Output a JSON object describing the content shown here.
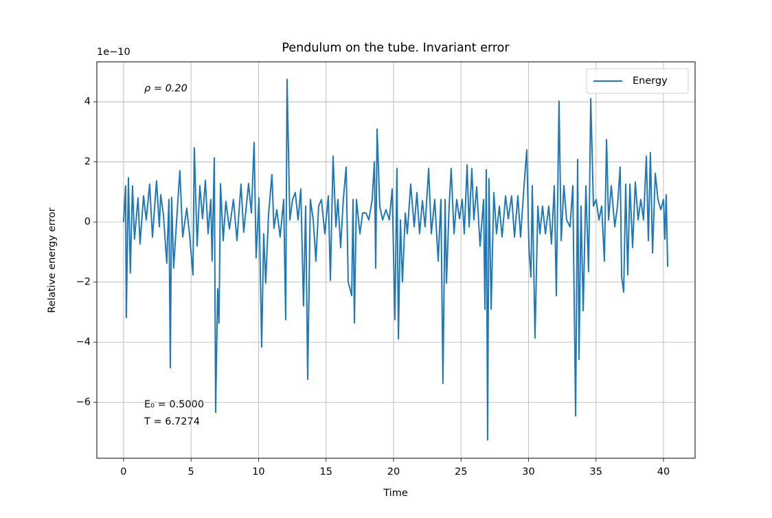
{
  "chart_data": {
    "type": "line",
    "title": "Pendulum on the tube. Invariant error",
    "x_label": "Time",
    "y_label": "Relative energy error",
    "y_offset_label": "1e−10",
    "annotations": [
      "ρ = 0.20",
      "E₀ = 0.5000",
      "T = 6.7274"
    ],
    "xlim": [
      -1.98,
      42.34
    ],
    "ylim": [
      -7.86,
      5.33
    ],
    "xticks": [
      0,
      5,
      10,
      15,
      20,
      25,
      30,
      35,
      40
    ],
    "yticks": [
      {
        "value": -6,
        "label": "−6"
      },
      {
        "value": -4,
        "label": "−4"
      },
      {
        "value": -2,
        "label": "−2"
      },
      0,
      2,
      4
    ],
    "grid": true,
    "legend": "upper right",
    "series": [
      {
        "name": "Energy",
        "color": "#1f77b4",
        "x": [
          0,
          0.15,
          0.2,
          0.36,
          0.5,
          0.66,
          0.81,
          1.07,
          1.22,
          1.48,
          1.68,
          1.93,
          2.14,
          2.44,
          2.65,
          2.75,
          2.95,
          3.2,
          3.36,
          3.46,
          3.56,
          3.71,
          3.97,
          4.17,
          4.38,
          4.68,
          4.89,
          5.14,
          5.24,
          5.45,
          5.65,
          5.85,
          6.06,
          6.26,
          6.46,
          6.56,
          6.72,
          6.82,
          6.97,
          7.07,
          7.18,
          7.38,
          7.58,
          7.84,
          8.14,
          8.4,
          8.7,
          8.9,
          9.26,
          9.47,
          9.67,
          9.82,
          10.03,
          10.23,
          10.38,
          10.53,
          10.74,
          10.99,
          11.14,
          11.35,
          11.6,
          11.86,
          12.01,
          12.11,
          12.32,
          12.52,
          12.72,
          12.93,
          13.13,
          13.33,
          13.49,
          13.64,
          13.84,
          14.05,
          14.25,
          14.45,
          14.66,
          14.91,
          15.17,
          15.32,
          15.52,
          15.73,
          15.88,
          16.08,
          16.28,
          16.49,
          16.64,
          16.9,
          17.0,
          17.1,
          17.25,
          17.51,
          17.71,
          17.96,
          18.17,
          18.42,
          18.58,
          18.68,
          18.78,
          18.98,
          19.19,
          19.44,
          19.69,
          19.9,
          20.1,
          20.25,
          20.36,
          20.51,
          20.66,
          20.87,
          21.02,
          21.27,
          21.53,
          21.73,
          21.93,
          22.14,
          22.34,
          22.6,
          22.8,
          23.05,
          23.31,
          23.51,
          23.66,
          23.82,
          23.92,
          24.12,
          24.27,
          24.48,
          24.68,
          24.89,
          25.09,
          25.24,
          25.45,
          25.6,
          25.8,
          25.95,
          26.16,
          26.41,
          26.67,
          26.77,
          26.87,
          26.97,
          27.07,
          27.23,
          27.43,
          27.63,
          27.84,
          28.04,
          28.3,
          28.5,
          28.75,
          28.96,
          29.21,
          29.41,
          29.67,
          29.87,
          30.03,
          30.18,
          30.28,
          30.48,
          30.69,
          30.84,
          31.04,
          31.25,
          31.5,
          31.7,
          31.91,
          32.06,
          32.26,
          32.42,
          32.62,
          32.82,
          33.08,
          33.28,
          33.49,
          33.64,
          33.74,
          33.89,
          34.05,
          34.25,
          34.45,
          34.61,
          34.81,
          35.01,
          35.22,
          35.42,
          35.62,
          35.78,
          35.93,
          36.13,
          36.39,
          36.59,
          36.79,
          36.9,
          37.05,
          37.2,
          37.35,
          37.51,
          37.71,
          37.91,
          38.12,
          38.32,
          38.52,
          38.73,
          38.88,
          39.03,
          39.19,
          39.39,
          39.59,
          39.8,
          40.0,
          40.1,
          40.2,
          40.31
        ],
        "values": [
          0,
          1.2,
          -3.18,
          1.47,
          -1.7,
          1.2,
          -0.57,
          0.8,
          -0.73,
          0.87,
          0.07,
          1.26,
          -0.5,
          1.37,
          -0.16,
          0.91,
          0.25,
          -1.37,
          0.75,
          -4.85,
          0.82,
          -1.53,
          0.34,
          1.71,
          -0.5,
          0.46,
          -0.43,
          -1.76,
          2.47,
          -0.8,
          1.21,
          0.11,
          1.39,
          -0.39,
          0.75,
          -1.3,
          2.13,
          -6.33,
          -2.22,
          -3.36,
          1.28,
          -0.62,
          0.69,
          -0.23,
          0.75,
          -0.62,
          1.26,
          -0.34,
          1.28,
          0.3,
          2.65,
          -1.19,
          0.8,
          -4.16,
          -0.39,
          -2.03,
          0.25,
          1.58,
          -0.21,
          0.41,
          -0.5,
          0.75,
          -3.25,
          4.75,
          0.07,
          0.75,
          0.98,
          0.07,
          1.1,
          -2.79,
          0.53,
          -5.23,
          0.75,
          0.07,
          -1.3,
          0.53,
          0.75,
          -0.39,
          0.87,
          -1.94,
          2.19,
          -0.16,
          0.75,
          -0.85,
          0.75,
          1.83,
          -1.99,
          -2.45,
          0.75,
          -3.36,
          0.75,
          -0.39,
          0.3,
          0.3,
          0.07,
          0.75,
          2.01,
          -1.53,
          3.09,
          0.53,
          0.07,
          0.41,
          0.07,
          1.1,
          -3.25,
          1.78,
          -3.89,
          0.07,
          -1.99,
          0.3,
          -0.39,
          1.26,
          -0.16,
          0.98,
          -0.39,
          0.71,
          -0.16,
          1.78,
          -0.39,
          0.75,
          -1.3,
          0.75,
          -5.37,
          0.75,
          -2.03,
          0.53,
          1.78,
          -0.39,
          0.75,
          0.11,
          0.75,
          -0.39,
          1.9,
          -0.16,
          1.78,
          0.07,
          1.17,
          -0.8,
          0.75,
          -2.9,
          1.74,
          -7.25,
          1.44,
          -2.9,
          0.98,
          -0.39,
          0.53,
          -0.5,
          0.87,
          0.11,
          0.87,
          -0.5,
          0.87,
          -0.5,
          1.21,
          2.4,
          -0.85,
          -1.83,
          1.21,
          -3.86,
          0.53,
          -0.39,
          0.53,
          -0.39,
          0.53,
          -0.73,
          1.21,
          -2.45,
          4.02,
          -0.62,
          1.21,
          0.07,
          -0.16,
          1.21,
          -6.45,
          2.08,
          -4.57,
          0.53,
          -2.95,
          1.21,
          -1.65,
          4.11,
          0.53,
          0.75,
          0.07,
          0.53,
          -1.3,
          2.74,
          0.07,
          1.21,
          -0.16,
          0.53,
          1.83,
          -1.83,
          -2.33,
          1.26,
          -1.76,
          1.26,
          -0.85,
          1.33,
          0.07,
          0.75,
          0.07,
          2.19,
          -0.62,
          2.31,
          -1.03,
          1.62,
          0.75,
          0.41,
          0.75,
          -0.57,
          0.91,
          -1.49
        ]
      }
    ]
  }
}
